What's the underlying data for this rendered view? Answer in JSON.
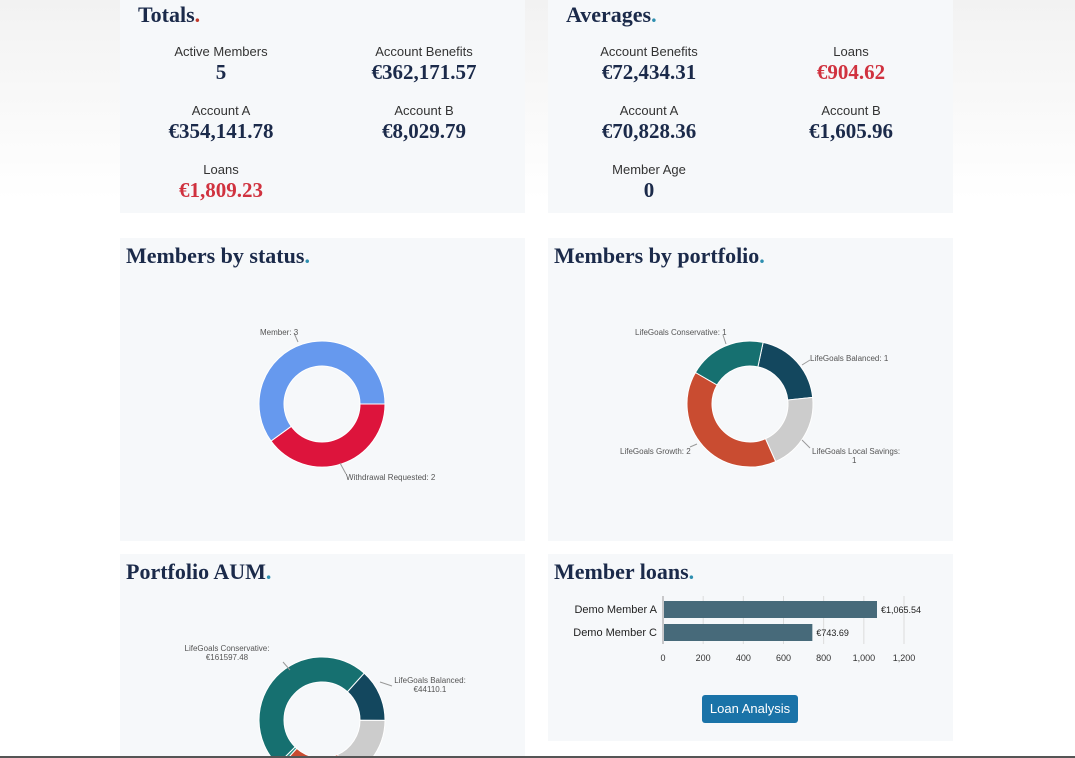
{
  "totals": {
    "title": "Totals",
    "dot": ".",
    "active_members_label": "Active Members",
    "active_members_value": "5",
    "account_benefits_label": "Account Benefits",
    "account_benefits_value": "€362,171.57",
    "account_a_label": "Account A",
    "account_a_value": "€354,141.78",
    "account_b_label": "Account B",
    "account_b_value": "€8,029.79",
    "loans_label": "Loans",
    "loans_value": "€1,809.23"
  },
  "averages": {
    "title": "Averages",
    "dot": ".",
    "account_benefits_label": "Account Benefits",
    "account_benefits_value": "€72,434.31",
    "loans_label": "Loans",
    "loans_value": "€904.62",
    "account_a_label": "Account A",
    "account_a_value": "€70,828.36",
    "account_b_label": "Account B",
    "account_b_value": "€1,605.96",
    "member_age_label": "Member Age",
    "member_age_value": "0"
  },
  "status_panel": {
    "title": "Members by status",
    "dot": ".",
    "slices": [
      {
        "label": "Member: 3",
        "value": 3,
        "color": "#6699ee"
      },
      {
        "label": "Withdrawal Requested: 2",
        "value": 2,
        "color": "#dd143c"
      }
    ]
  },
  "portfolio_panel": {
    "title": "Members by portfolio",
    "dot": ".",
    "slices": [
      {
        "label": "LifeGoals Conservative: 1",
        "value": 1,
        "color": "#167070"
      },
      {
        "label": "LifeGoals Balanced: 1",
        "value": 1,
        "color": "#13475e"
      },
      {
        "label": "LifeGoals Local Savings:",
        "label2": "1",
        "value": 1,
        "color": "#cccccc"
      },
      {
        "label": "LifeGoals Growth: 2",
        "value": 2,
        "color": "#c94c31"
      }
    ]
  },
  "aum_panel": {
    "title": "Portfolio AUM",
    "dot": ".",
    "labels": [
      {
        "line1": "LifeGoals Conservative:",
        "line2": "€161597.48"
      },
      {
        "line1": "LifeGoals Balanced:",
        "line2": "€44110.1"
      }
    ],
    "colors": {
      "conservative": "#167070",
      "balanced": "#13475e",
      "local_savings": "#cccccc",
      "growth": "#c94c31",
      "extra": "#2a8f86"
    }
  },
  "loans_panel": {
    "title": "Member loans",
    "dot": ".",
    "button_label": "Loan Analysis"
  },
  "chart_data": {
    "type": "bar",
    "orientation": "horizontal",
    "categories": [
      "Demo Member A",
      "Demo Member C"
    ],
    "values": [
      1065.54,
      743.69
    ],
    "value_labels": [
      "€1,065.54",
      "€743.69"
    ],
    "xlim": [
      0,
      1200
    ],
    "xticks": [
      "0",
      "200",
      "400",
      "600",
      "800",
      "1,000",
      "1,200"
    ],
    "bar_color": "#476a7a",
    "grid": true
  }
}
